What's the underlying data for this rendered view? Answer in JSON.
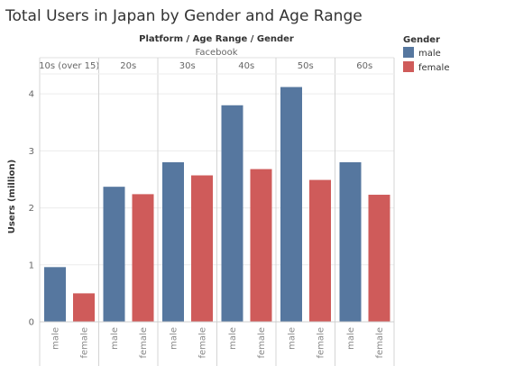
{
  "chart_data": {
    "type": "bar",
    "title": "Total Users in Japan by Gender and Age Range",
    "column_header": "Platform  /  Age Range  /  Gender",
    "platform": "Facebook",
    "ylabel": "Users (million)",
    "ylim": [
      0,
      4.35
    ],
    "yticks": [
      0,
      1,
      2,
      3,
      4
    ],
    "grid": true,
    "groups": [
      "10s (over 15)",
      "20s",
      "30s",
      "40s",
      "50s",
      "60s"
    ],
    "genders": [
      "male",
      "female"
    ],
    "series": [
      {
        "name": "male",
        "color": "#56779f",
        "values": [
          0.96,
          2.37,
          2.8,
          3.8,
          4.12,
          2.8
        ]
      },
      {
        "name": "female",
        "color": "#cf5b5a",
        "values": [
          0.5,
          2.24,
          2.57,
          2.68,
          2.49,
          2.23
        ]
      }
    ],
    "legend": {
      "title": "Gender",
      "placement": "right",
      "items": [
        {
          "label": "male",
          "color": "#56779f"
        },
        {
          "label": "female",
          "color": "#cf5b5a"
        }
      ]
    }
  }
}
